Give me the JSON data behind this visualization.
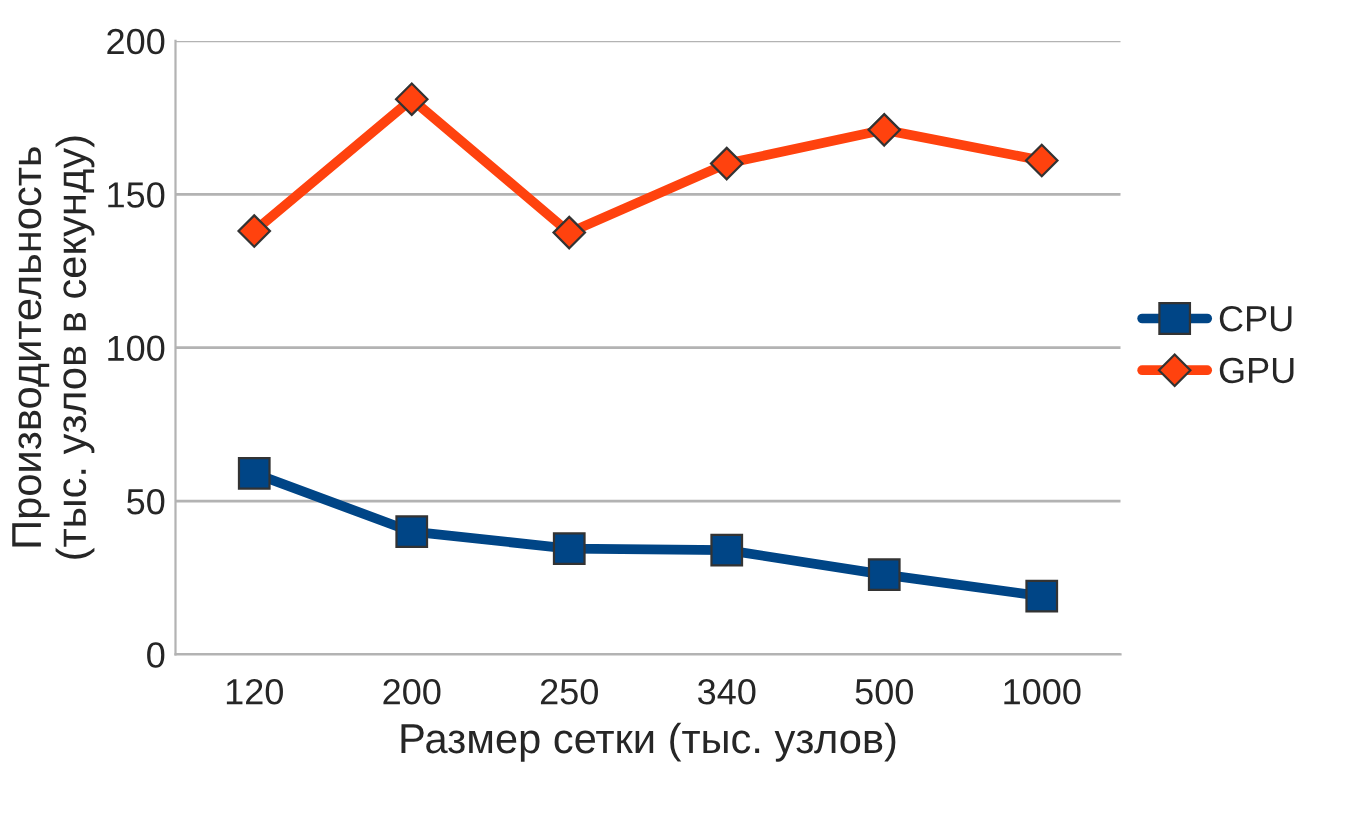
{
  "chart_data": {
    "type": "line",
    "xlabel": "Размер сетки (тыс. узлов)",
    "ylabel": "Производительность\n(тыс. узлов в секунду)",
    "categories": [
      "120",
      "200",
      "250",
      "340",
      "500",
      "1000"
    ],
    "series": [
      {
        "name": "CPU",
        "color": "#004586",
        "marker": "square",
        "values": [
          59,
          40,
          34.5,
          34,
          26,
          19
        ]
      },
      {
        "name": "GPU",
        "color": "#ff420e",
        "marker": "diamond",
        "values": [
          138,
          181,
          137.5,
          160,
          171,
          161
        ]
      }
    ],
    "ylim": [
      0,
      200
    ],
    "yticks": [
      0,
      50,
      100,
      150,
      200
    ],
    "grid": "y",
    "legend": "right",
    "line_style": "solid"
  }
}
